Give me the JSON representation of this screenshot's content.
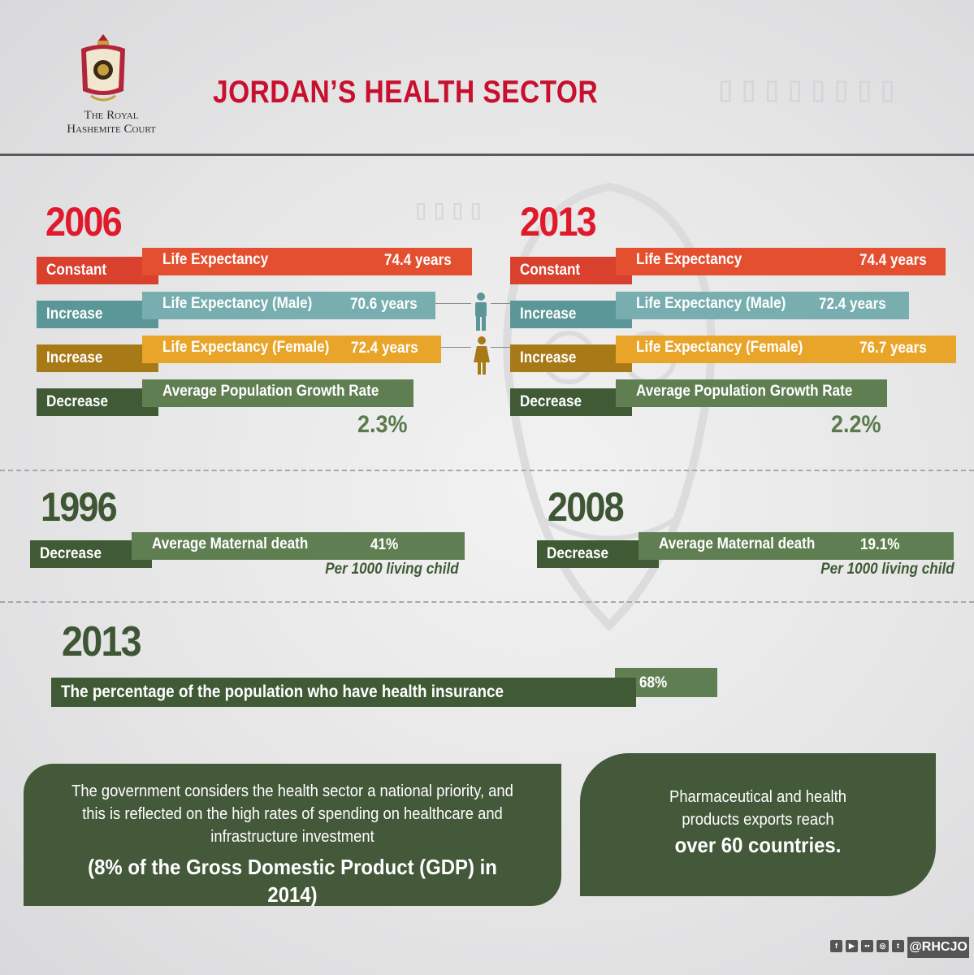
{
  "header": {
    "court_line1": "The Royal",
    "court_line2": "Hashemite Court",
    "title": "JORDAN’S HEALTH SECTOR"
  },
  "colors": {
    "red": "#e01a2b",
    "orange": "#e4502f",
    "teal": "#78aeaf",
    "gold": "#e9a52a",
    "green": "#5f7f52",
    "dark_green": "#3f5a35"
  },
  "section1": {
    "left": {
      "year": "2006",
      "rows": [
        {
          "tag": "Constant",
          "label": "Life Expectancy",
          "value": "74.4 years"
        },
        {
          "tag": "Increase",
          "label": "Life Expectancy (Male)",
          "value": "70.6 years"
        },
        {
          "tag": "Increase",
          "label": "Life Expectancy (Female)",
          "value": "72.4 years"
        },
        {
          "tag": "Decrease",
          "label": "Average Population Growth Rate",
          "value": "2.3%"
        }
      ]
    },
    "right": {
      "year": "2013",
      "rows": [
        {
          "tag": "Constant",
          "label": "Life Expectancy",
          "value": "74.4 years"
        },
        {
          "tag": "Increase",
          "label": "Life Expectancy (Male)",
          "value": "72.4 years"
        },
        {
          "tag": "Increase",
          "label": "Life Expectancy (Female)",
          "value": "76.7 years"
        },
        {
          "tag": "Decrease",
          "label": "Average Population Growth Rate",
          "value": "2.2%"
        }
      ]
    },
    "icons": [
      "male-figure-icon",
      "female-figure-icon"
    ]
  },
  "section2": {
    "left": {
      "year": "1996",
      "tag": "Decrease",
      "label": "Average Maternal death",
      "value": "41%",
      "note": "Per 1000 living child"
    },
    "right": {
      "year": "2008",
      "tag": "Decrease",
      "label": "Average Maternal death",
      "value": "19.1%",
      "note": "Per 1000 living child"
    }
  },
  "section3": {
    "year": "2013",
    "label": "The percentage of the population who have health insurance",
    "value": "68%"
  },
  "boxes": {
    "left": {
      "text": "The government considers the health sector a national priority, and this is reflected on the high rates of spending on healthcare and infrastructure investment",
      "highlight": "(8% of the Gross Domestic Product (GDP) in 2014)"
    },
    "right": {
      "text": "Pharmaceutical and health products exports reach",
      "highlight": "over 60 countries."
    }
  },
  "footer": {
    "social_icons": [
      "facebook-icon",
      "youtube-icon",
      "flickr-icon",
      "instagram-icon",
      "tumblr-icon"
    ],
    "handle": "@RHCJO"
  }
}
